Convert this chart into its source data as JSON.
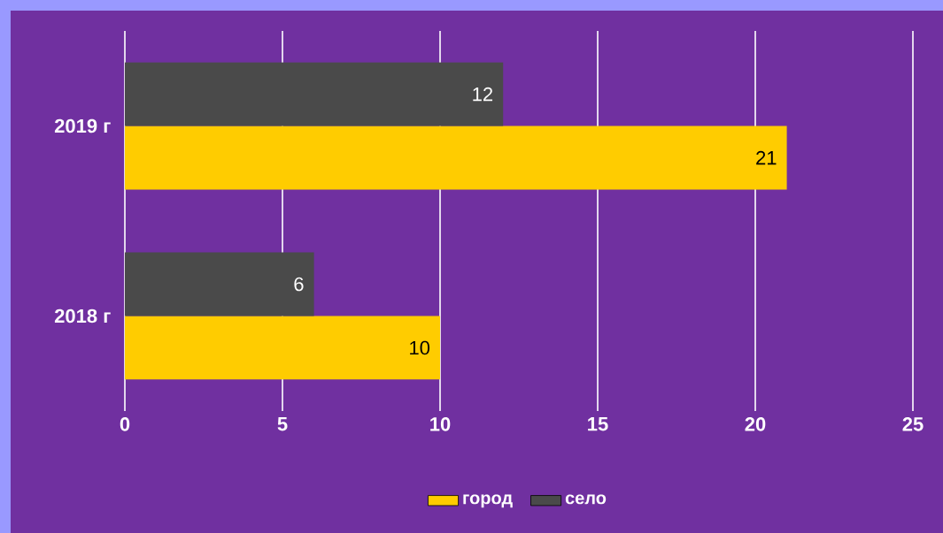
{
  "chart_data": {
    "type": "bar",
    "orientation": "horizontal",
    "categories": [
      "2019 г",
      "2018 г"
    ],
    "series": [
      {
        "name": "город",
        "color": "#ffcc00",
        "values": [
          21,
          10
        ]
      },
      {
        "name": "село",
        "color": "#4a4a4a",
        "values": [
          12,
          6
        ]
      }
    ],
    "xlim": [
      0,
      25
    ],
    "xticks": [
      0,
      5,
      10,
      15,
      20,
      25
    ],
    "grid": "x",
    "legend": "bottom",
    "data_labels": true
  }
}
